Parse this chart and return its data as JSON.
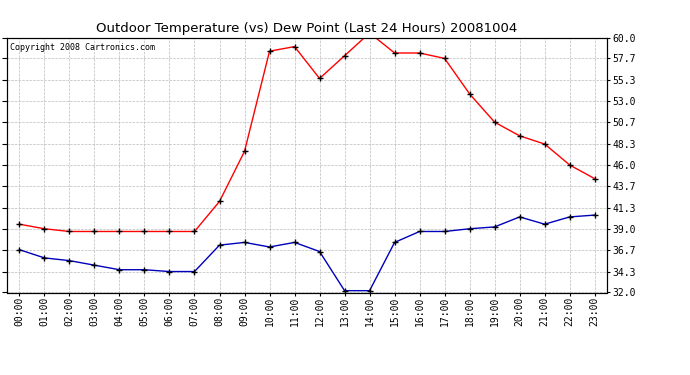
{
  "title": "Outdoor Temperature (vs) Dew Point (Last 24 Hours) 20081004",
  "copyright_text": "Copyright 2008 Cartronics.com",
  "hours": [
    "00:00",
    "01:00",
    "02:00",
    "03:00",
    "04:00",
    "05:00",
    "06:00",
    "07:00",
    "08:00",
    "09:00",
    "10:00",
    "11:00",
    "12:00",
    "13:00",
    "14:00",
    "15:00",
    "16:00",
    "17:00",
    "18:00",
    "19:00",
    "20:00",
    "21:00",
    "22:00",
    "23:00"
  ],
  "temp_red": [
    39.5,
    39.0,
    38.7,
    38.7,
    38.7,
    38.7,
    38.7,
    38.7,
    42.0,
    47.5,
    58.5,
    59.0,
    55.5,
    58.0,
    60.5,
    58.3,
    58.3,
    57.7,
    53.8,
    50.7,
    49.2,
    48.3,
    46.0,
    44.5
  ],
  "dew_blue": [
    36.7,
    35.8,
    35.5,
    35.0,
    34.5,
    34.5,
    34.3,
    34.3,
    37.2,
    37.5,
    37.0,
    37.5,
    36.5,
    32.2,
    32.2,
    37.5,
    38.7,
    38.7,
    39.0,
    39.2,
    40.3,
    39.5,
    40.3,
    40.5
  ],
  "ylim_min": 32.0,
  "ylim_max": 60.0,
  "yticks": [
    32.0,
    34.3,
    36.7,
    39.0,
    41.3,
    43.7,
    46.0,
    48.3,
    50.7,
    53.0,
    55.3,
    57.7,
    60.0
  ],
  "red_color": "#ff0000",
  "blue_color": "#0000bb",
  "bg_color": "#ffffff",
  "grid_color": "#bbbbbb",
  "title_fontsize": 9.5,
  "copyright_fontsize": 6,
  "tick_fontsize": 7
}
